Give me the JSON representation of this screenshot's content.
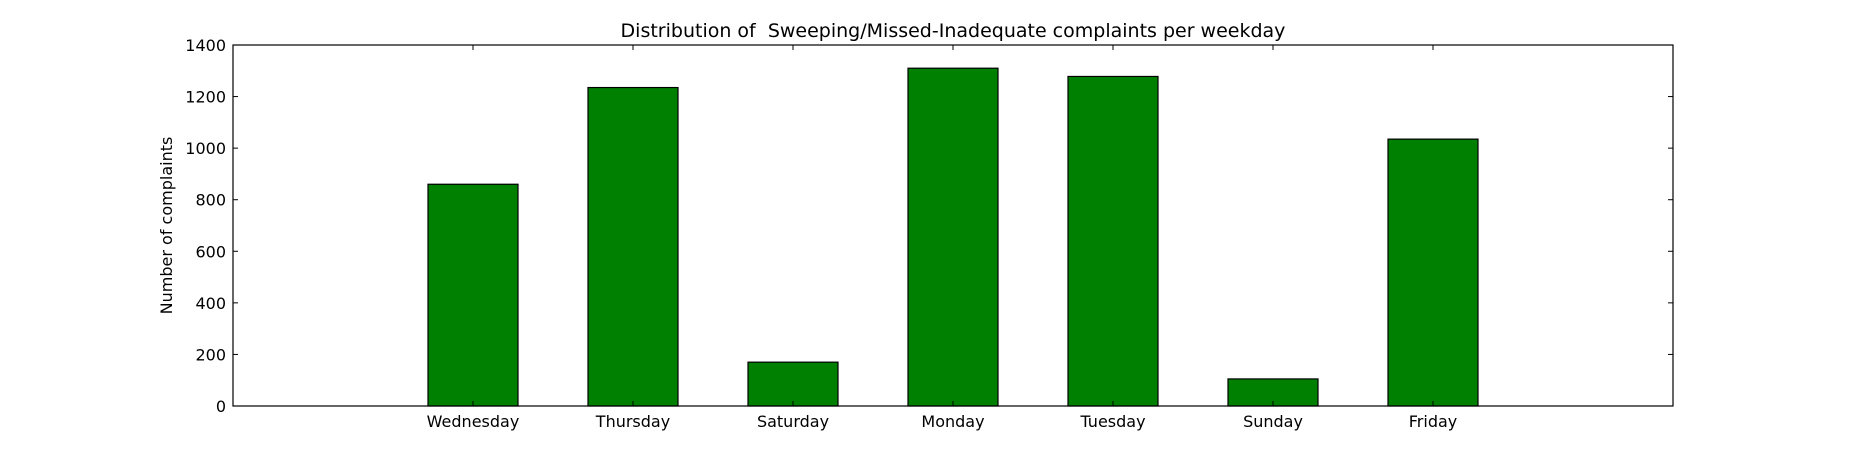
{
  "chart_data": {
    "type": "bar",
    "title": "Distribution of  Sweeping/Missed-Inadequate complaints per weekday",
    "xlabel": "",
    "ylabel": "Number of complaints",
    "categories": [
      "Wednesday",
      "Thursday",
      "Saturday",
      "Monday",
      "Tuesday",
      "Sunday",
      "Friday"
    ],
    "values": [
      860,
      1235,
      170,
      1310,
      1278,
      105,
      1035
    ],
    "ylim": [
      0,
      1400
    ],
    "yticks": [
      0,
      200,
      400,
      600,
      800,
      1000,
      1200,
      1400
    ],
    "bar_color": "#008000",
    "grid": false,
    "legend": "none"
  }
}
